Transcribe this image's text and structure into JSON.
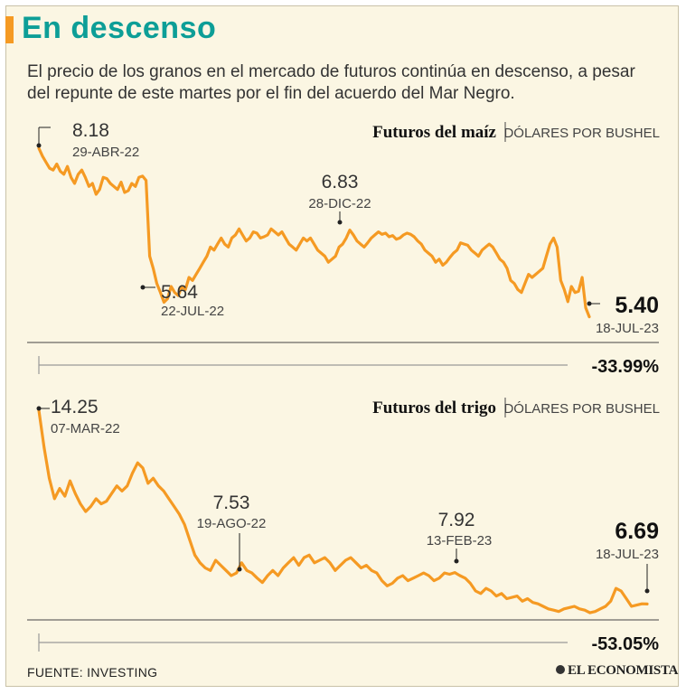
{
  "header": {
    "title": "En descenso",
    "subtitle": "El precio de los granos en el mercado de futuros continúa en descenso, a pesar del repunte de este martes por el fin del acuerdo del Mar Negro."
  },
  "colors": {
    "accent": "#f59a23",
    "title": "#0d9e97",
    "background": "#fbf6e3"
  },
  "chart_data": [
    {
      "type": "line",
      "title": "Futuros del maíz",
      "unit": "DÓLARES POR BUSHEL",
      "ylim": [
        5.2,
        8.3
      ],
      "x_range": [
        "2022-04-29",
        "2023-07-18"
      ],
      "series": [
        {
          "name": "Futuros del maíz",
          "values": [
            8.18,
            8.05,
            7.95,
            7.85,
            7.82,
            7.92,
            7.8,
            7.75,
            7.88,
            7.7,
            7.6,
            7.75,
            7.82,
            7.7,
            7.55,
            7.6,
            7.42,
            7.5,
            7.7,
            7.68,
            7.6,
            7.55,
            7.5,
            7.62,
            7.45,
            7.48,
            7.6,
            7.55,
            7.7,
            7.72,
            7.65,
            6.4,
            6.2,
            5.95,
            5.8,
            5.64,
            5.7,
            5.9,
            5.8,
            5.75,
            5.9,
            5.85,
            6.05,
            6.0,
            6.1,
            6.2,
            6.3,
            6.4,
            6.55,
            6.5,
            6.6,
            6.7,
            6.6,
            6.55,
            6.7,
            6.75,
            6.85,
            6.75,
            6.65,
            6.7,
            6.8,
            6.78,
            6.7,
            6.72,
            6.75,
            6.85,
            6.8,
            6.75,
            6.8,
            6.7,
            6.6,
            6.55,
            6.5,
            6.6,
            6.7,
            6.65,
            6.7,
            6.6,
            6.5,
            6.45,
            6.4,
            6.3,
            6.35,
            6.4,
            6.55,
            6.6,
            6.7,
            6.83,
            6.75,
            6.65,
            6.6,
            6.55,
            6.62,
            6.7,
            6.75,
            6.8,
            6.76,
            6.78,
            6.72,
            6.74,
            6.68,
            6.7,
            6.75,
            6.78,
            6.76,
            6.72,
            6.65,
            6.6,
            6.5,
            6.45,
            6.4,
            6.3,
            6.35,
            6.25,
            6.3,
            6.38,
            6.45,
            6.5,
            6.62,
            6.6,
            6.58,
            6.5,
            6.45,
            6.4,
            6.5,
            6.55,
            6.6,
            6.55,
            6.45,
            6.35,
            6.3,
            6.2,
            6.0,
            5.95,
            5.85,
            5.8,
            5.95,
            6.1,
            6.05,
            6.1,
            6.15,
            6.2,
            6.4,
            6.6,
            6.7,
            6.55,
            6.0,
            5.85,
            5.65,
            5.9,
            5.8,
            5.82,
            6.05,
            5.55,
            5.4
          ]
        }
      ],
      "annotations": {
        "max": {
          "value": "8.18",
          "date": "29-ABR-22"
        },
        "min": {
          "value": "5.64",
          "date": "22-JUL-22"
        },
        "peak2": {
          "value": "6.83",
          "date": "28-DIC-22"
        },
        "last": {
          "value": "5.40",
          "date": "18-JUL-23"
        }
      },
      "change": "-33.99%"
    },
    {
      "type": "line",
      "title": "Futuros del trigo",
      "unit": "DÓLARES POR BUSHEL",
      "ylim": [
        6.0,
        14.5
      ],
      "x_range": [
        "2022-03-07",
        "2023-07-18"
      ],
      "series": [
        {
          "name": "Futuros del trigo",
          "values": [
            14.25,
            12.8,
            11.6,
            10.8,
            11.2,
            10.9,
            11.5,
            11.0,
            10.6,
            10.3,
            10.5,
            10.8,
            10.6,
            10.7,
            11.0,
            11.3,
            11.1,
            11.3,
            11.8,
            12.2,
            12.0,
            11.4,
            11.6,
            11.3,
            11.1,
            10.8,
            10.5,
            10.2,
            9.8,
            9.2,
            8.6,
            8.3,
            8.1,
            8.0,
            8.4,
            8.2,
            8.0,
            7.8,
            7.9,
            8.3,
            8.0,
            7.9,
            7.7,
            7.53,
            7.8,
            8.0,
            7.8,
            8.1,
            8.3,
            8.5,
            8.2,
            8.5,
            8.6,
            8.3,
            8.4,
            8.5,
            8.3,
            8.0,
            8.2,
            8.4,
            8.5,
            8.3,
            8.1,
            8.2,
            8.0,
            7.9,
            7.6,
            7.4,
            7.5,
            7.7,
            7.8,
            7.6,
            7.7,
            7.8,
            7.9,
            7.8,
            7.6,
            7.7,
            7.9,
            7.85,
            7.92,
            7.8,
            7.7,
            7.5,
            7.2,
            7.1,
            7.3,
            7.2,
            7.0,
            7.1,
            6.9,
            6.95,
            7.0,
            6.8,
            6.9,
            6.75,
            6.7,
            6.6,
            6.5,
            6.45,
            6.4,
            6.5,
            6.55,
            6.6,
            6.5,
            6.45,
            6.35,
            6.4,
            6.5,
            6.6,
            6.8,
            7.3,
            7.2,
            6.9,
            6.6,
            6.65,
            6.7,
            6.69
          ]
        }
      ],
      "annotations": {
        "max": {
          "value": "14.25",
          "date": "07-MAR-22"
        },
        "mid1": {
          "value": "7.53",
          "date": "19-AGO-22"
        },
        "mid2": {
          "value": "7.92",
          "date": "13-FEB-23"
        },
        "last": {
          "value": "6.69",
          "date": "18-JUL-23"
        }
      },
      "change": "-53.05%"
    }
  ],
  "footer": {
    "source": "FUENTE: INVESTING",
    "logo": "EL ECONOMISTA"
  }
}
